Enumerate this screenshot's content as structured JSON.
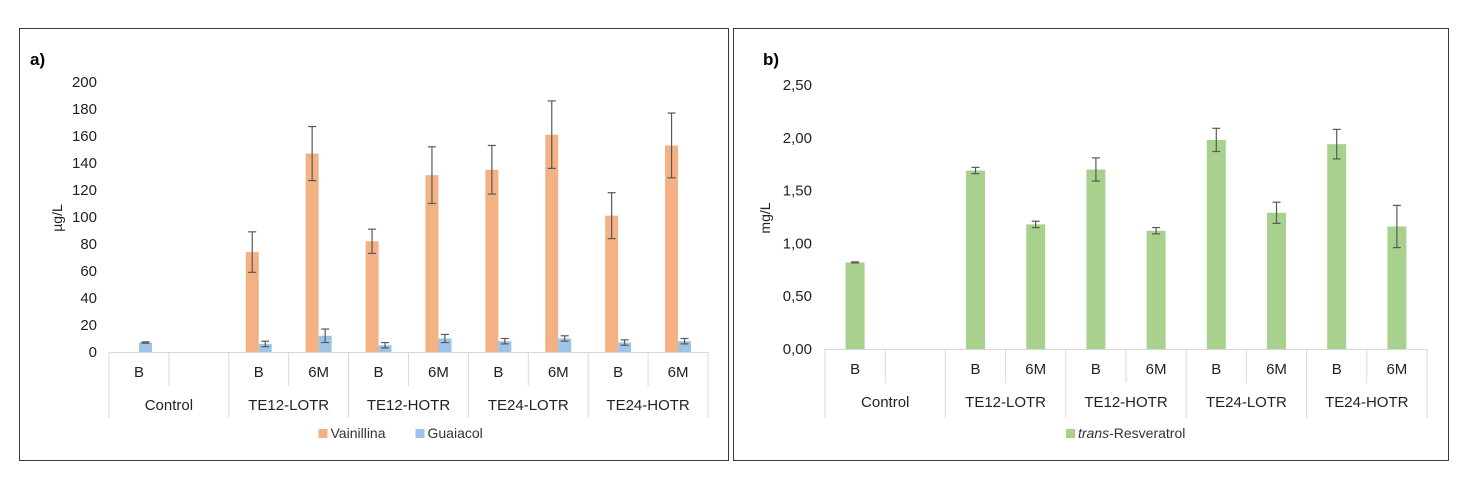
{
  "chart_data": [
    {
      "panel_label": "a)",
      "type": "bar",
      "ylabel": "µg/L",
      "ylim": [
        0,
        200
      ],
      "yticks": [
        "0",
        "20",
        "40",
        "60",
        "80",
        "100",
        "120",
        "140",
        "160",
        "180",
        "200"
      ],
      "ytick_values": [
        0,
        20,
        40,
        60,
        80,
        100,
        120,
        140,
        160,
        180,
        200
      ],
      "grid": false,
      "categories": [
        {
          "group": "Control",
          "subs": [
            "B",
            ""
          ]
        },
        {
          "group": "TE12-LOTR",
          "subs": [
            "B",
            "6M"
          ]
        },
        {
          "group": "TE12-HOTR",
          "subs": [
            "B",
            "6M"
          ]
        },
        {
          "group": "TE24-LOTR",
          "subs": [
            "B",
            "6M"
          ]
        },
        {
          "group": "TE24-HOTR",
          "subs": [
            "B",
            "6M"
          ]
        }
      ],
      "series": [
        {
          "name": "Vainillina",
          "color": "#F4B183",
          "values": [
            null,
            null,
            74,
            147,
            82,
            131,
            135,
            161,
            101,
            153
          ],
          "errors": [
            null,
            null,
            15,
            20,
            9,
            21,
            18,
            25,
            17,
            24
          ]
        },
        {
          "name": "Guaiacol",
          "color": "#9DC3E6",
          "values": [
            7,
            null,
            6,
            12,
            5,
            10,
            8,
            10,
            7,
            8
          ],
          "errors": [
            0.5,
            null,
            2,
            5,
            2,
            3,
            2,
            2,
            2,
            2
          ]
        }
      ],
      "legend_position": "bottom"
    },
    {
      "panel_label": "b)",
      "type": "bar",
      "ylabel": "mg/L",
      "ylim": [
        0,
        2.5
      ],
      "yticks": [
        "0,00",
        "0,50",
        "1,00",
        "1,50",
        "2,00",
        "2,50"
      ],
      "ytick_values": [
        0,
        0.5,
        1.0,
        1.5,
        2.0,
        2.5
      ],
      "grid": false,
      "categories": [
        {
          "group": "Control",
          "subs": [
            "B",
            ""
          ]
        },
        {
          "group": "TE12-LOTR",
          "subs": [
            "B",
            "6M"
          ]
        },
        {
          "group": "TE12-HOTR",
          "subs": [
            "B",
            "6M"
          ]
        },
        {
          "group": "TE24-LOTR",
          "subs": [
            "B",
            "6M"
          ]
        },
        {
          "group": "TE24-HOTR",
          "subs": [
            "B",
            "6M"
          ]
        }
      ],
      "series": [
        {
          "name_italic": "trans",
          "name_rest": "-Resveratrol",
          "name": "trans-Resveratrol",
          "color": "#A9D18E",
          "values": [
            0.82,
            null,
            1.69,
            1.18,
            1.7,
            1.12,
            1.98,
            1.29,
            1.94,
            1.16
          ],
          "errors": [
            0.005,
            null,
            0.03,
            0.03,
            0.11,
            0.03,
            0.11,
            0.1,
            0.14,
            0.2
          ]
        }
      ],
      "legend_position": "bottom"
    }
  ]
}
